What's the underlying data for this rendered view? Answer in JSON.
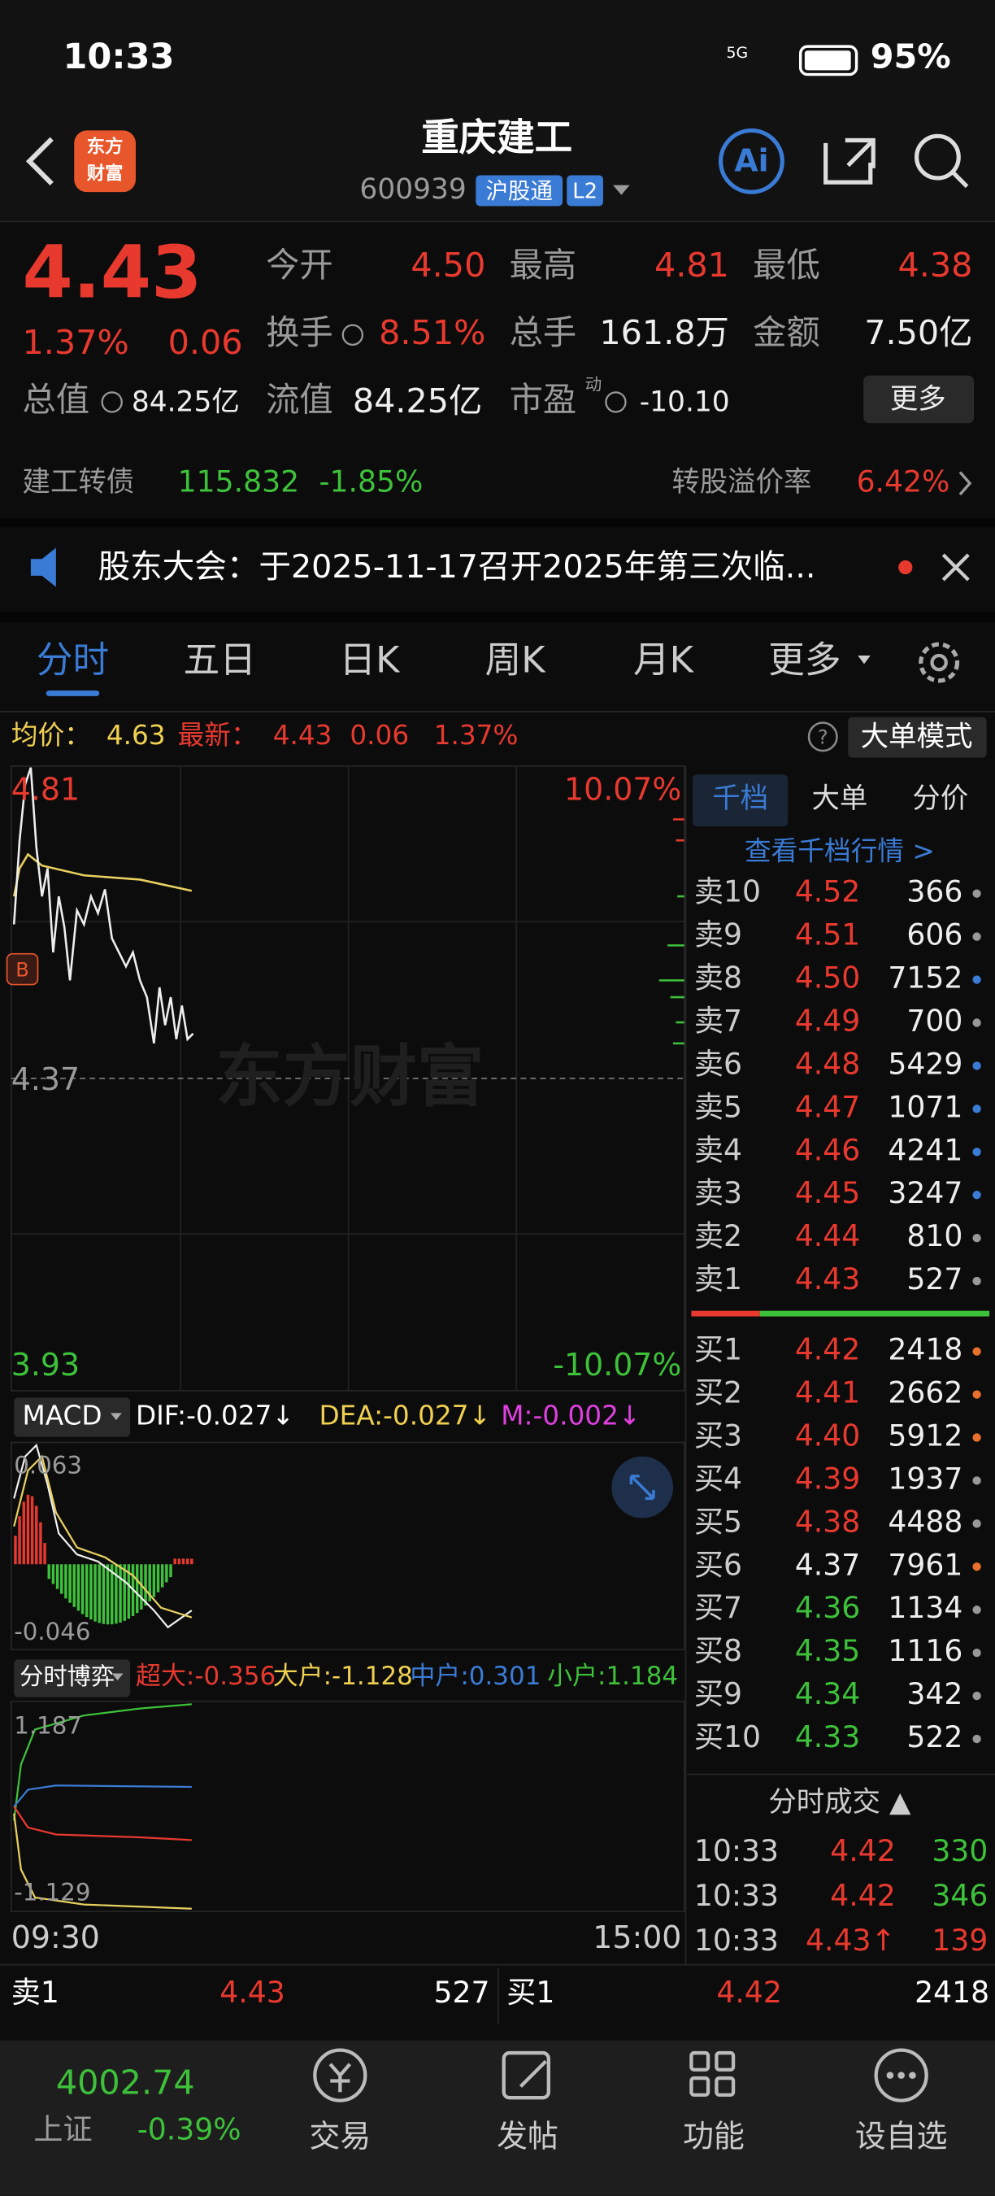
{
  "status_bar": {
    "time": "10:33",
    "network": "5G",
    "battery": "95%"
  },
  "header": {
    "logo": [
      "东方",
      "财富"
    ],
    "title": "重庆建工",
    "code": "600939",
    "badge_connect": "沪股通",
    "badge_level": "L2",
    "ai": "Ai"
  },
  "quote": {
    "price": "4.43",
    "change_pct": "1.37%",
    "change": "0.06",
    "stats": [
      {
        "label": "今开",
        "value": "4.50"
      },
      {
        "label": "最高",
        "value": "4.81"
      },
      {
        "label": "最低",
        "value": "4.38"
      },
      {
        "label": "换手",
        "value": "8.51%"
      },
      {
        "label": "总手",
        "value": "161.8万"
      },
      {
        "label": "金额",
        "value": "7.50亿"
      },
      {
        "label": "总值",
        "value": "84.25亿"
      },
      {
        "label": "流值",
        "value": "84.25亿"
      },
      {
        "label": "市盈",
        "value": "-10.10"
      }
    ],
    "pe_sup": "动",
    "more": "更多"
  },
  "bond": {
    "name": "建工转债",
    "price": "115.832",
    "change": "-1.85%",
    "premium_label": "转股溢价率",
    "premium": "6.42%"
  },
  "notice": "股东大会：于2025-11-17召开2025年第三次临...",
  "tabs": [
    "分时",
    "五日",
    "日K",
    "周K",
    "月K",
    "更多"
  ],
  "chart": {
    "avg_label": "均价：",
    "avg": "4.63",
    "latest_label": "最新：",
    "latest": "4.43",
    "change": "0.06",
    "change_pct": "1.37%",
    "help": "?",
    "mode": "大单模式",
    "y_high": "4.81",
    "y_mid": "4.37",
    "y_low": "3.93",
    "pct_high": "10.07%",
    "pct_low": "-10.07%",
    "marker": "B",
    "watermark": "东方财富",
    "macd": {
      "name": "MACD",
      "dif": "DIF:-0.027↓",
      "dea": "DEA:-0.027↓",
      "m": "M:-0.002↓",
      "top": "0.063",
      "bottom": "-0.046"
    },
    "flow": {
      "name": "分时博弈",
      "super": "超大:-0.356",
      "large": "大户:-1.128",
      "mid": "中户:0.301",
      "small": "小户:1.184",
      "top": "1.187",
      "bottom": "-1.129"
    },
    "time_start": "09:30",
    "time_end": "15:00"
  },
  "order_book": {
    "tabs": [
      "千档",
      "大单",
      "分价"
    ],
    "link": "查看千档行情 >",
    "asks": [
      {
        "label": "卖10",
        "price": "4.52",
        "volume": "366"
      },
      {
        "label": "卖9",
        "price": "4.51",
        "volume": "606"
      },
      {
        "label": "卖8",
        "price": "4.50",
        "volume": "7152"
      },
      {
        "label": "卖7",
        "price": "4.49",
        "volume": "700"
      },
      {
        "label": "卖6",
        "price": "4.48",
        "volume": "5429"
      },
      {
        "label": "卖5",
        "price": "4.47",
        "volume": "1071"
      },
      {
        "label": "卖4",
        "price": "4.46",
        "volume": "4241"
      },
      {
        "label": "卖3",
        "price": "4.45",
        "volume": "3247"
      },
      {
        "label": "卖2",
        "price": "4.44",
        "volume": "810"
      },
      {
        "label": "卖1",
        "price": "4.43",
        "volume": "527"
      }
    ],
    "bids": [
      {
        "label": "买1",
        "price": "4.42",
        "volume": "2418"
      },
      {
        "label": "买2",
        "price": "4.41",
        "volume": "2662"
      },
      {
        "label": "买3",
        "price": "4.40",
        "volume": "5912"
      },
      {
        "label": "买4",
        "price": "4.39",
        "volume": "1937"
      },
      {
        "label": "买5",
        "price": "4.38",
        "volume": "4488"
      },
      {
        "label": "买6",
        "price": "4.37",
        "volume": "7961"
      },
      {
        "label": "买7",
        "price": "4.36",
        "volume": "1134"
      },
      {
        "label": "买8",
        "price": "4.35",
        "volume": "1116"
      },
      {
        "label": "买9",
        "price": "4.34",
        "volume": "342"
      },
      {
        "label": "买10",
        "price": "4.33",
        "volume": "522"
      }
    ]
  },
  "trades": {
    "title": "分时成交 ▲",
    "rows": [
      {
        "time": "10:33",
        "price": "4.42",
        "volume": "330"
      },
      {
        "time": "10:33",
        "price": "4.42",
        "volume": "346"
      },
      {
        "time": "10:33",
        "price": "4.43↑",
        "volume": "139"
      }
    ]
  },
  "bottom_quote": {
    "ask": {
      "label": "卖1",
      "price": "4.43",
      "volume": "527"
    },
    "bid": {
      "label": "买1",
      "price": "4.42",
      "volume": "2418"
    }
  },
  "nav": {
    "index_value": "4002.74",
    "index_name": "上证",
    "index_change": "-0.39%",
    "items": [
      "交易",
      "发帖",
      "功能",
      "设自选"
    ]
  }
}
